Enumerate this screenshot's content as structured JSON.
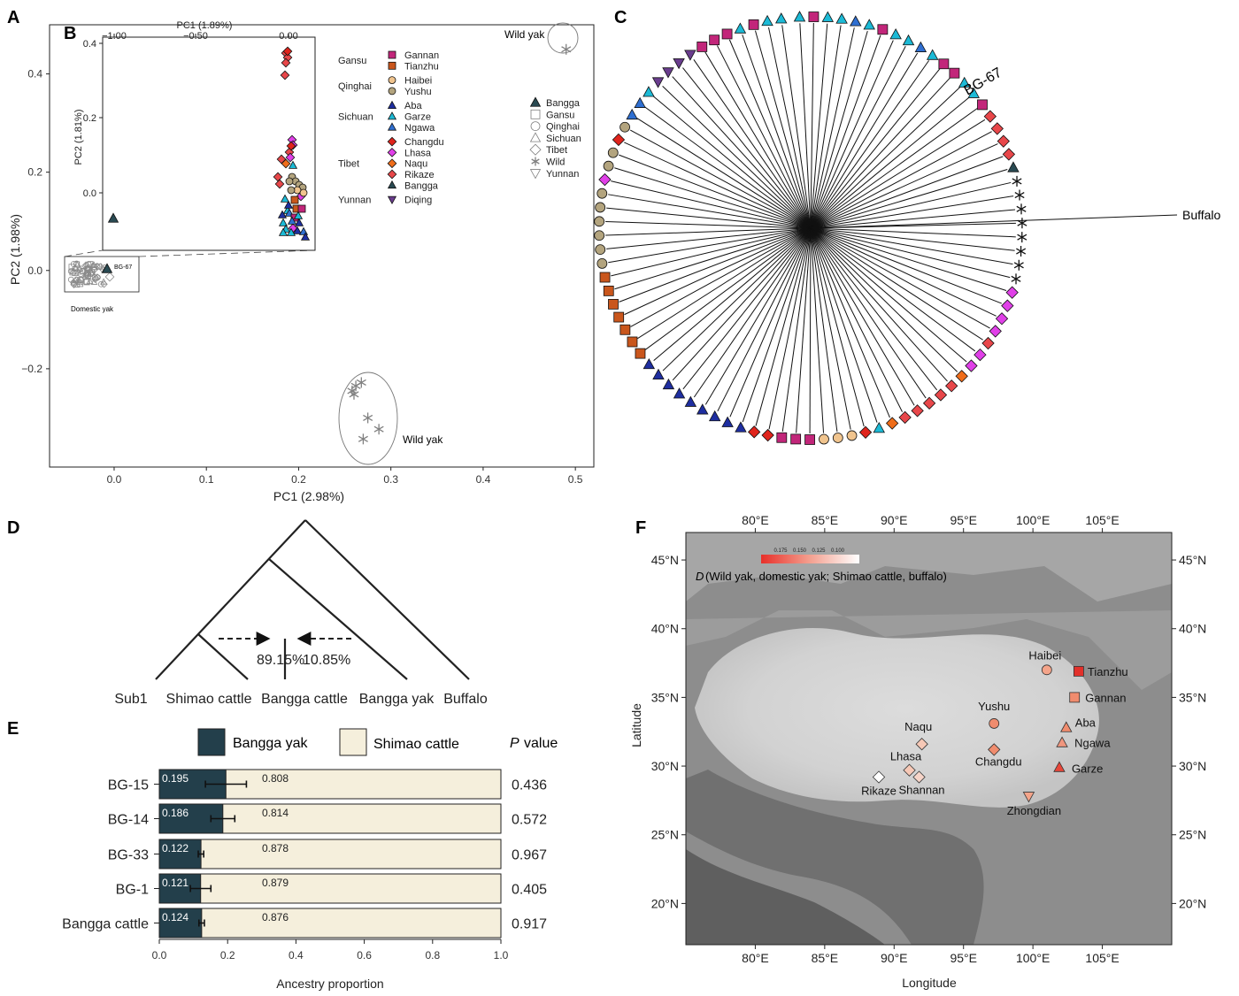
{
  "panel_letters": [
    "A",
    "B",
    "C",
    "D",
    "E",
    "F"
  ],
  "colors": {
    "gannan": "#c2267a",
    "tianzhu": "#c9561c",
    "haibei": "#f0c48e",
    "yushu": "#b3a47e",
    "aba": "#1e2ea0",
    "garze": "#1cbad6",
    "ngawa": "#2f6fd1",
    "changdu": "#e0241c",
    "lhasa": "#e040e8",
    "naqu": "#ef6d1a",
    "rikaze": "#e8474a",
    "bangga": "#294a52",
    "diqing": "#6a3d8e",
    "wild": "#808080",
    "bangga_yak": "#233f4b",
    "shimao": "#f5efdc"
  },
  "chart_data": [
    {
      "id": "A",
      "type": "scatter",
      "xlabel": "PC1 (2.98%)",
      "ylabel": "PC2 (1.98%)",
      "xlim": [
        -0.07,
        0.52
      ],
      "ylim": [
        -0.4,
        0.5
      ],
      "xticks": [
        "0.0",
        "0.1",
        "0.2",
        "0.3",
        "0.4",
        "0.5"
      ],
      "yticks": [
        "−0.2",
        "0.0",
        "0.2",
        "0.4"
      ],
      "annotations": [
        "Wild yak",
        "Wild yak",
        "Domestic yak",
        "BG-67"
      ],
      "wild_points": [
        [
          0.49,
          0.45
        ],
        [
          0.268,
          -0.228
        ],
        [
          0.262,
          -0.235
        ],
        [
          0.258,
          -0.245
        ],
        [
          0.26,
          -0.252
        ],
        [
          0.275,
          -0.3
        ],
        [
          0.287,
          -0.323
        ],
        [
          0.27,
          -0.343
        ]
      ],
      "bangga_point": [
        -0.008,
        0.025
      ],
      "series": [
        {
          "name": "Bangga",
          "marker": "triangle"
        },
        {
          "name": "Gansu",
          "marker": "square"
        },
        {
          "name": "Qinghai",
          "marker": "circle"
        },
        {
          "name": "Sichuan",
          "marker": "triangle"
        },
        {
          "name": "Tibet",
          "marker": "diamond"
        },
        {
          "name": "Wild",
          "marker": "asterisk"
        },
        {
          "name": "Yunnan",
          "marker": "triangle-down"
        }
      ]
    },
    {
      "id": "B",
      "type": "scatter",
      "xlabel": "PC1 (1.89%)",
      "ylabel": "PC2 (1.81%)",
      "xticks": [
        "−1.00",
        "−0.50",
        "0.00"
      ],
      "yticks": [
        "0.0",
        "0.2",
        "0.4"
      ],
      "legend_groups": [
        {
          "region": "Gansu",
          "pops": [
            {
              "name": "Gannan",
              "shape": "square",
              "color": "#c2267a"
            },
            {
              "name": "Tianzhu",
              "shape": "square",
              "color": "#c9561c"
            }
          ]
        },
        {
          "region": "Qinghai",
          "pops": [
            {
              "name": "Haibei",
              "shape": "circle",
              "color": "#f0c48e"
            },
            {
              "name": "Yushu",
              "shape": "circle",
              "color": "#b3a47e"
            }
          ]
        },
        {
          "region": "Sichuan",
          "pops": [
            {
              "name": "Aba",
              "shape": "triangle",
              "color": "#1e2ea0"
            },
            {
              "name": "Garze",
              "shape": "triangle",
              "color": "#1cbad6"
            },
            {
              "name": "Ngawa",
              "shape": "triangle",
              "color": "#2f6fd1"
            }
          ]
        },
        {
          "region": "Tibet",
          "pops": [
            {
              "name": "Changdu",
              "shape": "diamond",
              "color": "#e0241c"
            },
            {
              "name": "Lhasa",
              "shape": "diamond",
              "color": "#e040e8"
            },
            {
              "name": "Naqu",
              "shape": "diamond",
              "color": "#ef6d1a"
            },
            {
              "name": "Rikaze",
              "shape": "diamond",
              "color": "#e8474a"
            },
            {
              "name": "Bangga",
              "shape": "triangle",
              "color": "#294a52"
            }
          ]
        },
        {
          "region": "Yunnan",
          "pops": [
            {
              "name": "Diqing",
              "shape": "triangle-down",
              "color": "#6a3d8e"
            }
          ]
        }
      ]
    },
    {
      "id": "C",
      "type": "tree",
      "labels": [
        "BG-67",
        "Buffalo"
      ],
      "tips": [
        "triangle:#1cbad6",
        "square:#c2267a",
        "triangle:#1cbad6",
        "triangle:#1cbad6",
        "triangle:#2f6fd1",
        "triangle:#1cbad6",
        "square:#c2267a",
        "triangle:#1cbad6",
        "triangle:#1cbad6",
        "triangle:#2f6fd1",
        "triangle:#1cbad6",
        "square:#c2267a",
        "square:#c2267a",
        "triangle:#1cbad6",
        "triangle:#1cbad6",
        "square:#c2267a",
        "diamond:#e8474a",
        "diamond:#e8474a",
        "diamond:#e8474a",
        "diamond:#e8474a",
        "triangle:#294a52",
        "asterisk:#111",
        "asterisk:#111",
        "asterisk:#111",
        "asterisk:#111",
        "asterisk:#111",
        "asterisk:#111",
        "asterisk:#111",
        "asterisk:#111",
        "diamond:#e040e8",
        "diamond:#e040e8",
        "diamond:#e040e8",
        "diamond:#e040e8",
        "diamond:#e8474a",
        "diamond:#e040e8",
        "diamond:#e040e8",
        "diamond:#ef6d1a",
        "diamond:#e8474a",
        "diamond:#e8474a",
        "diamond:#e8474a",
        "diamond:#e8474a",
        "diamond:#e8474a",
        "diamond:#ef6d1a",
        "triangle:#1cbad6",
        "diamond:#e0241c",
        "circle:#f0c48e",
        "circle:#f0c48e",
        "circle:#f0c48e",
        "square:#c2267a",
        "square:#c2267a",
        "square:#c2267a",
        "diamond:#e0241c",
        "diamond:#e0241c",
        "triangle:#1e2ea0",
        "triangle:#1e2ea0",
        "triangle:#1e2ea0",
        "triangle:#1e2ea0",
        "triangle:#1e2ea0",
        "triangle:#1e2ea0",
        "triangle:#1e2ea0",
        "triangle:#1e2ea0",
        "triangle:#1e2ea0",
        "square:#c9561c",
        "square:#c9561c",
        "square:#c9561c",
        "square:#c9561c",
        "square:#c9561c",
        "square:#c9561c",
        "square:#c9561c",
        "circle:#b3a47e",
        "circle:#b3a47e",
        "circle:#b3a47e",
        "circle:#b3a47e",
        "circle:#b3a47e",
        "circle:#b3a47e",
        "diamond:#e040e8",
        "circle:#b3a47e",
        "circle:#b3a47e",
        "diamond:#e0241c",
        "circle:#b3a47e",
        "triangle:#2f6fd1",
        "triangle:#2f6fd1",
        "triangle:#1cbad6",
        "triangle-down:#6a3d8e",
        "triangle-down:#6a3d8e",
        "triangle-down:#6a3d8e",
        "triangle-down:#6a3d8e",
        "square:#c2267a",
        "square:#c2267a",
        "square:#c2267a",
        "triangle:#1cbad6",
        "square:#c2267a",
        "triangle:#1cbad6",
        "triangle:#1cbad6"
      ]
    },
    {
      "id": "D",
      "type": "diagram",
      "labels": [
        "Sub1",
        "Shimao cattle",
        "Bangga cattle",
        "Bangga yak",
        "Buffalo"
      ],
      "arrows": [
        "89.15%",
        "10.85%"
      ]
    },
    {
      "id": "E",
      "type": "bar",
      "categories": [
        "BG-15",
        "BG-14",
        "BG-33",
        "BG-1",
        "Bangga cattle"
      ],
      "series": [
        {
          "name": "Bangga yak",
          "values": [
            0.195,
            0.186,
            0.122,
            0.121,
            0.124
          ]
        },
        {
          "name": "Shimao cattle",
          "values": [
            0.808,
            0.814,
            0.878,
            0.879,
            0.876
          ]
        }
      ],
      "value_labels": {
        "bangga": [
          "0.195",
          "0.186",
          "0.122",
          "0.121",
          "0.124"
        ],
        "shimao": [
          "0.808",
          "0.814",
          "0.878",
          "0.879",
          "0.876"
        ]
      },
      "errors": [
        0.06,
        0.035,
        0.008,
        0.03,
        0.008
      ],
      "pvalue_header": "P value",
      "pvalues": [
        "0.436",
        "0.572",
        "0.967",
        "0.405",
        "0.917"
      ],
      "xlabel": "Ancestry proportion",
      "xlim": [
        0,
        1
      ],
      "xticks": [
        "0.0",
        "0.2",
        "0.4",
        "0.6",
        "0.8",
        "1.0"
      ]
    },
    {
      "id": "F",
      "type": "map",
      "xlabel": "Longitude",
      "ylabel": "Latitude",
      "lon_range": [
        75,
        110
      ],
      "lat_range": [
        17,
        47
      ],
      "xticks": [
        "80°E",
        "85°E",
        "90°E",
        "95°E",
        "100°E",
        "105°E"
      ],
      "yticks": [
        "20°N",
        "25°N",
        "30°N",
        "35°N",
        "40°N",
        "45°N"
      ],
      "legend_title": "(Wild yak, domestic yak; Shimao cattle, buffalo)",
      "legend_symbol": "D",
      "legend_ticks": [
        "0.175",
        "0.150",
        "0.125",
        "0.100"
      ],
      "sites": [
        {
          "name": "Haibei",
          "lon": 101.0,
          "lat": 37.0,
          "shape": "circle",
          "color": "#f4a48a"
        },
        {
          "name": "Tianzhu",
          "lon": 103.3,
          "lat": 36.9,
          "shape": "square",
          "color": "#e2302a"
        },
        {
          "name": "Gannan",
          "lon": 103.0,
          "lat": 35.0,
          "shape": "square",
          "color": "#f08c6e"
        },
        {
          "name": "Yushu",
          "lon": 97.2,
          "lat": 33.1,
          "shape": "circle",
          "color": "#f08c6e"
        },
        {
          "name": "Aba",
          "lon": 102.4,
          "lat": 32.8,
          "shape": "triangle",
          "color": "#f08c6e"
        },
        {
          "name": "Ngawa",
          "lon": 102.1,
          "lat": 31.7,
          "shape": "triangle",
          "color": "#f0967e"
        },
        {
          "name": "Naqu",
          "lon": 92.0,
          "lat": 31.6,
          "shape": "diamond",
          "color": "#f6c8b6"
        },
        {
          "name": "Changdu",
          "lon": 97.2,
          "lat": 31.2,
          "shape": "diamond",
          "color": "#f08c6e"
        },
        {
          "name": "Garze",
          "lon": 101.9,
          "lat": 29.9,
          "shape": "triangle",
          "color": "#e8473a"
        },
        {
          "name": "Lhasa",
          "lon": 91.1,
          "lat": 29.7,
          "shape": "diamond",
          "color": "#f6c8b6"
        },
        {
          "name": "Shannan",
          "lon": 91.8,
          "lat": 29.2,
          "shape": "diamond",
          "color": "#f6d4c8"
        },
        {
          "name": "Rikaze",
          "lon": 88.9,
          "lat": 29.2,
          "shape": "diamond",
          "color": "#ffffff"
        },
        {
          "name": "Zhongdian",
          "lon": 99.7,
          "lat": 27.8,
          "shape": "triangle-down",
          "color": "#f4a48a"
        }
      ]
    }
  ]
}
